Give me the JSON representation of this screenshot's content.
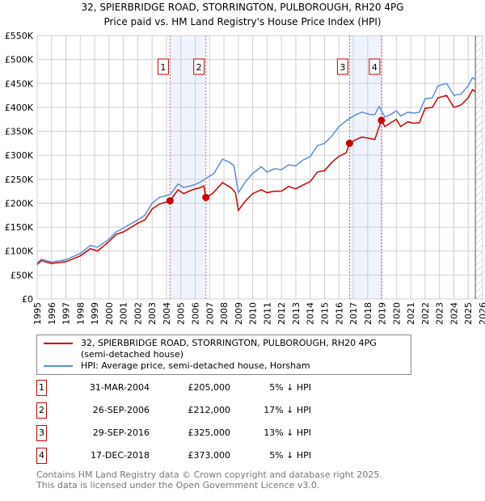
{
  "chart_data": {
    "type": "line",
    "title": "32, SPIERBRIDGE ROAD, STORRINGTON, PULBOROUGH, RH20 4PG",
    "subtitle": "Price paid vs. HM Land Registry's House Price Index (HPI)",
    "xlim": [
      1995,
      2026
    ],
    "ylim": [
      0,
      550000
    ],
    "yticks": [
      {
        "v": 0,
        "label": "£0"
      },
      {
        "v": 50000,
        "label": "£50K"
      },
      {
        "v": 100000,
        "label": "£100K"
      },
      {
        "v": 150000,
        "label": "£150K"
      },
      {
        "v": 200000,
        "label": "£200K"
      },
      {
        "v": 250000,
        "label": "£250K"
      },
      {
        "v": 300000,
        "label": "£300K"
      },
      {
        "v": 350000,
        "label": "£350K"
      },
      {
        "v": 400000,
        "label": "£400K"
      },
      {
        "v": 450000,
        "label": "£450K"
      },
      {
        "v": 500000,
        "label": "£500K"
      },
      {
        "v": 550000,
        "label": "£550K"
      }
    ],
    "xticks": [
      "1995",
      "1996",
      "1997",
      "1998",
      "1999",
      "2000",
      "2001",
      "2002",
      "2003",
      "2004",
      "2005",
      "2006",
      "2007",
      "2008",
      "2009",
      "2010",
      "2011",
      "2012",
      "2013",
      "2014",
      "2015",
      "2016",
      "2017",
      "2018",
      "2019",
      "2020",
      "2021",
      "2022",
      "2023",
      "2024",
      "2025",
      "2026"
    ],
    "grid": true,
    "legend_position": "below",
    "series": [
      {
        "name": "32, SPIERBRIDGE ROAD, STORRINGTON, PULBOROUGH, RH20 4PG (semi-detached house)",
        "color": "#cc0000",
        "x": [
          1995,
          1995.3,
          1996,
          1997,
          1998,
          1998.7,
          1999.2,
          2000,
          2000.5,
          2001,
          2002,
          2002.5,
          2003,
          2003.5,
          2004.25,
          2004.8,
          2005.2,
          2005.8,
          2006.3,
          2006.6,
          2006.74,
          2007.2,
          2007.9,
          2008.5,
          2008.8,
          2009,
          2009.5,
          2010,
          2010.6,
          2011,
          2011.5,
          2012,
          2012.5,
          2013,
          2013.5,
          2014,
          2014.5,
          2015,
          2015.5,
          2016,
          2016.5,
          2016.74,
          2017.2,
          2017.6,
          2018.2,
          2018.5,
          2018.96,
          2019.2,
          2019.6,
          2020,
          2020.3,
          2020.8,
          2021.2,
          2021.6,
          2022,
          2022.5,
          2022.9,
          2023.5,
          2024,
          2024.5,
          2025,
          2025.3,
          2025.5
        ],
        "y": [
          72000,
          80000,
          74000,
          78000,
          90000,
          105000,
          100000,
          120000,
          135000,
          140000,
          158000,
          165000,
          188000,
          198000,
          205000,
          228000,
          220000,
          228000,
          232000,
          236000,
          212000,
          220000,
          243000,
          232000,
          222000,
          185000,
          205000,
          220000,
          228000,
          222000,
          225000,
          225000,
          235000,
          230000,
          238000,
          245000,
          265000,
          268000,
          285000,
          298000,
          305000,
          325000,
          333000,
          338000,
          335000,
          333000,
          373000,
          360000,
          368000,
          375000,
          360000,
          370000,
          367000,
          368000,
          398000,
          400000,
          420000,
          425000,
          400000,
          405000,
          420000,
          437000,
          433000
        ]
      },
      {
        "name": "HPI: Average price, semi-detached house, Horsham",
        "color": "#5b8fd4",
        "x": [
          1995,
          1995.3,
          1996,
          1997,
          1998,
          1998.7,
          1999.2,
          2000,
          2000.5,
          2001,
          2002,
          2002.5,
          2003,
          2003.5,
          2004,
          2004.25,
          2004.8,
          2005.2,
          2005.8,
          2006.3,
          2006.75,
          2007.3,
          2007.9,
          2008.4,
          2008.7,
          2009,
          2009.5,
          2010,
          2010.6,
          2011,
          2011.5,
          2012,
          2012.5,
          2013,
          2013.5,
          2014,
          2014.5,
          2015,
          2015.5,
          2016,
          2016.5,
          2016.75,
          2017.2,
          2017.6,
          2018.2,
          2018.5,
          2018.8,
          2019.2,
          2019.6,
          2020,
          2020.3,
          2020.8,
          2021.2,
          2021.6,
          2022,
          2022.5,
          2022.9,
          2023.5,
          2024,
          2024.5,
          2025,
          2025.3,
          2025.5
        ],
        "y": [
          76000,
          83000,
          77000,
          82000,
          95000,
          112000,
          108000,
          125000,
          140000,
          148000,
          165000,
          175000,
          200000,
          212000,
          216000,
          218000,
          240000,
          233000,
          237000,
          243000,
          252000,
          262000,
          292000,
          285000,
          278000,
          222000,
          245000,
          262000,
          276000,
          265000,
          272000,
          270000,
          280000,
          278000,
          290000,
          297000,
          320000,
          325000,
          340000,
          360000,
          372000,
          377000,
          385000,
          390000,
          385000,
          385000,
          402000,
          380000,
          385000,
          393000,
          382000,
          390000,
          388000,
          390000,
          418000,
          420000,
          445000,
          450000,
          425000,
          428000,
          445000,
          462000,
          458000
        ]
      }
    ],
    "sales": [
      {
        "id": "1",
        "x": 2004.25,
        "y": 205000,
        "date": "31-MAR-2004",
        "price": "£205,000",
        "hpi": "5% ↓ HPI"
      },
      {
        "id": "2",
        "x": 2006.74,
        "y": 212000,
        "date": "26-SEP-2006",
        "price": "£212,000",
        "hpi": "17% ↓ HPI"
      },
      {
        "id": "3",
        "x": 2016.74,
        "y": 325000,
        "date": "29-SEP-2016",
        "price": "£325,000",
        "hpi": "13% ↓ HPI"
      },
      {
        "id": "4",
        "x": 2018.96,
        "y": 373000,
        "date": "17-DEC-2018",
        "price": "£373,000",
        "hpi": "5% ↓ HPI"
      }
    ],
    "forecast_from": 2025.5
  },
  "footer": {
    "line1": "Contains HM Land Registry data © Crown copyright and database right 2025.",
    "line2": "This data is licensed under the Open Government Licence v3.0."
  }
}
